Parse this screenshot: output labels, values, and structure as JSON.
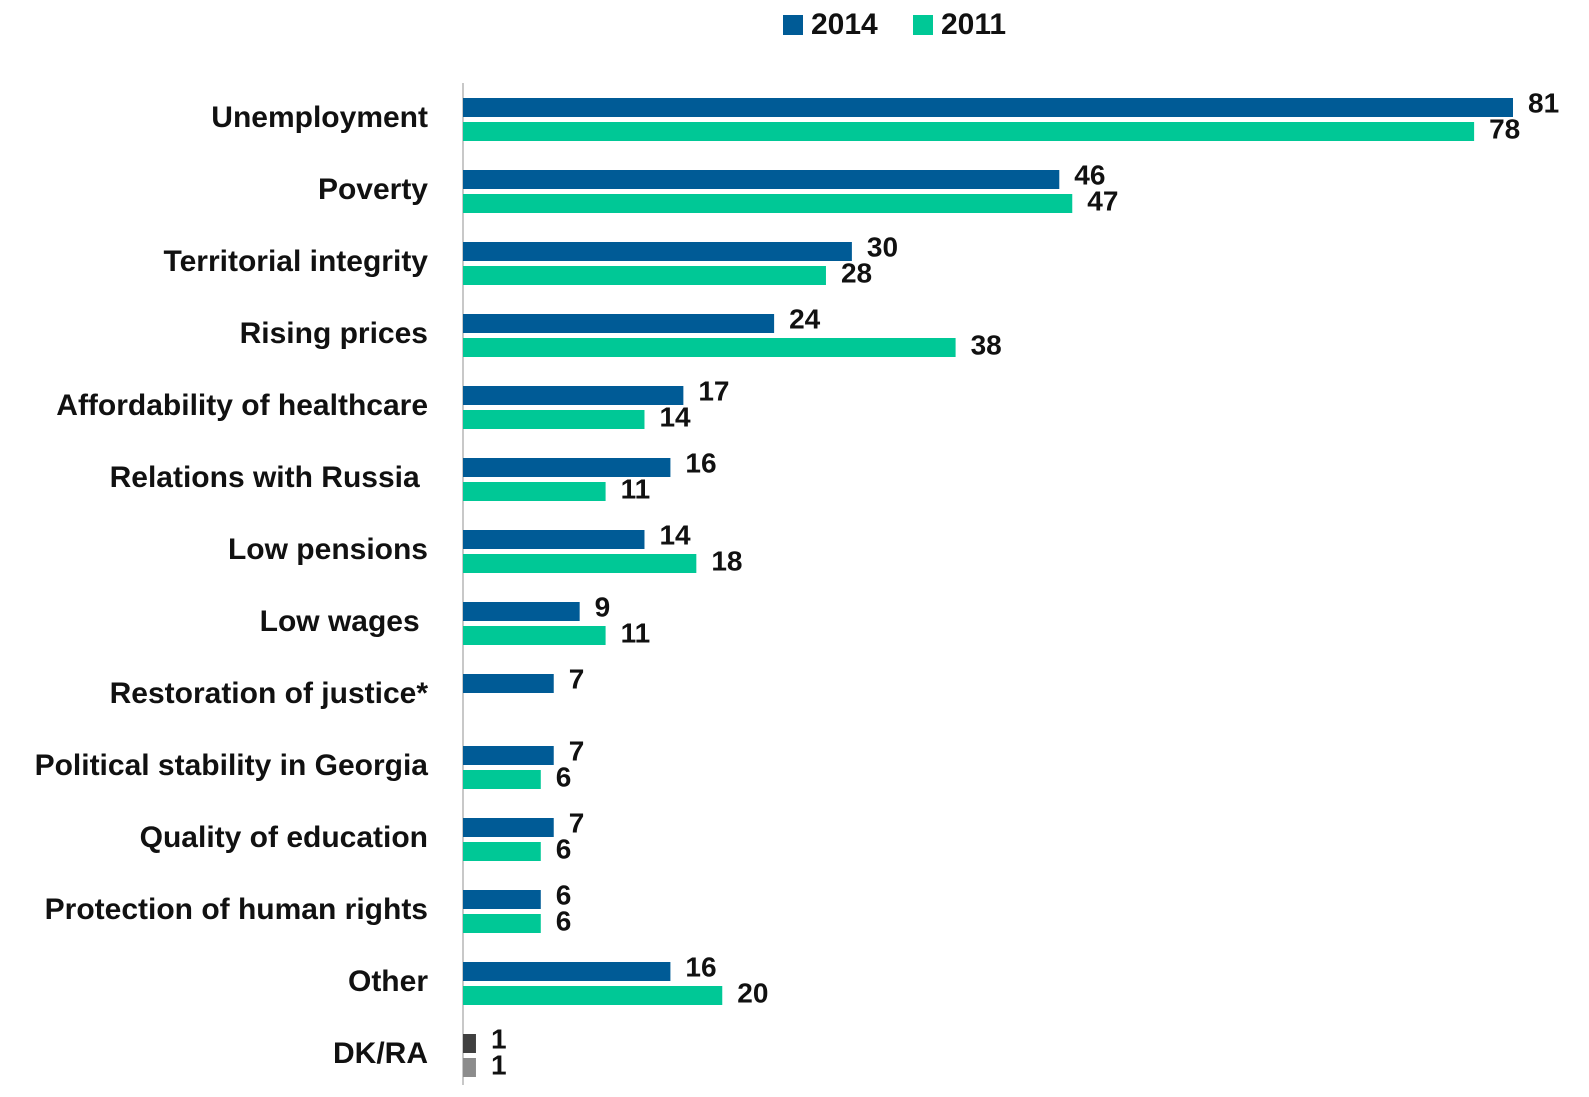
{
  "chart_data": {
    "type": "hbar",
    "categories": [
      "Unemployment",
      "Poverty",
      "Territorial integrity",
      "Rising prices",
      "Affordability of healthcare",
      "Relations with Russia ",
      "Low pensions",
      "Low wages ",
      "Restoration of justice*",
      "Political stability in Georgia",
      "Quality of education",
      "Protection of human rights",
      "Other",
      "DK/RA"
    ],
    "series": [
      {
        "name": "2014",
        "color": "#005b96",
        "values": [
          81,
          46,
          30,
          24,
          17,
          16,
          14,
          9,
          7,
          7,
          7,
          6,
          16,
          1
        ],
        "colors": [
          "#005b96",
          "#005b96",
          "#005b96",
          "#005b96",
          "#005b96",
          "#005b96",
          "#005b96",
          "#005b96",
          "#005b96",
          "#005b96",
          "#005b96",
          "#005b96",
          "#005b96",
          "#404040"
        ]
      },
      {
        "name": "2011",
        "color": "#00c896",
        "values": [
          78,
          47,
          28,
          38,
          14,
          11,
          18,
          11,
          null,
          6,
          6,
          6,
          20,
          1
        ],
        "colors": [
          "#00c896",
          "#00c896",
          "#00c896",
          "#00c896",
          "#00c896",
          "#00c896",
          "#00c896",
          "#00c896",
          "#00c896",
          "#00c896",
          "#00c896",
          "#00c896",
          "#00c896",
          "#8c8c8c"
        ]
      }
    ],
    "legend": "top"
  }
}
